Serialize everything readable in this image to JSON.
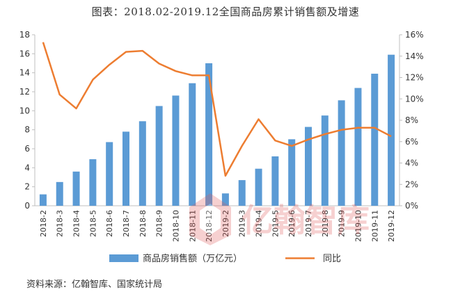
{
  "chart_data": {
    "type": "bar",
    "title": "图表：2018.02-2019.12全国商品房累计销售额及增速",
    "categories": [
      "2018-2",
      "2018-3",
      "2018-4",
      "2018-5",
      "2018-6",
      "2018-7",
      "2018-8",
      "2018-9",
      "2018-10",
      "2018-11",
      "2018-12",
      "2019-2",
      "2019-3",
      "2019-4",
      "2019-5",
      "2019-6",
      "2019-7",
      "2019-8",
      "2019-9",
      "2019-10",
      "2019-11",
      "2019-12"
    ],
    "series": [
      {
        "name": "商品房销售额（万亿元）",
        "type": "bar",
        "axis": "left",
        "color": "#5b9bd5",
        "values": [
          1.2,
          2.5,
          3.6,
          4.9,
          6.7,
          7.8,
          8.9,
          10.5,
          11.6,
          12.9,
          15.0,
          1.3,
          2.7,
          3.9,
          5.2,
          7.0,
          8.3,
          9.5,
          11.1,
          12.4,
          13.9,
          15.9
        ]
      },
      {
        "name": "同比",
        "type": "line",
        "axis": "right",
        "color": "#ed7d31",
        "values": [
          15.3,
          10.4,
          9.1,
          11.8,
          13.2,
          14.4,
          14.5,
          13.3,
          12.6,
          12.2,
          12.2,
          2.8,
          5.6,
          8.1,
          6.1,
          5.6,
          6.2,
          6.7,
          7.1,
          7.3,
          7.3,
          6.5
        ]
      }
    ],
    "y_left": {
      "min": 0,
      "max": 18,
      "step": 2,
      "ticks": [
        "0",
        "2",
        "4",
        "6",
        "8",
        "10",
        "12",
        "14",
        "16",
        "18"
      ]
    },
    "y_right": {
      "min": 0,
      "max": 16,
      "step": 2,
      "ticks": [
        "0%",
        "2%",
        "4%",
        "6%",
        "8%",
        "10%",
        "12%",
        "14%",
        "16%"
      ]
    },
    "grid": false,
    "legend_position": "bottom"
  },
  "legend": {
    "bar_label": "商品房销售额（万亿元）",
    "line_label": "同比"
  },
  "source": "资料来源：亿翰智库、国家统计局",
  "watermark": {
    "text": "亿翰智库"
  },
  "colors": {
    "bar": "#5b9bd5",
    "line": "#ed7d31",
    "axis": "#bfbfbf"
  }
}
